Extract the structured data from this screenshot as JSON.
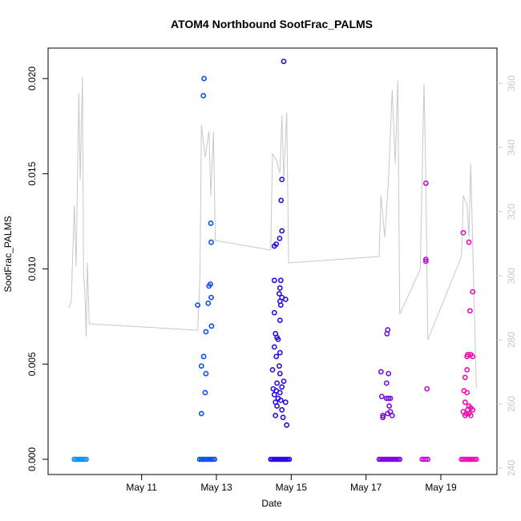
{
  "chart_data": {
    "type": "scatter",
    "title": "ATOM4 Northbound SootFrac_PALMS",
    "xlabel": "Date",
    "ylabel": "SootFrac_PALMS",
    "x_ticks": [
      {
        "day": 11,
        "label": "May 11"
      },
      {
        "day": 13,
        "label": "May 13"
      },
      {
        "day": 15,
        "label": "May 15"
      },
      {
        "day": 17,
        "label": "May 17"
      },
      {
        "day": 19,
        "label": "May 19"
      }
    ],
    "xlim_day": [
      8.5,
      20.5
    ],
    "ylim": [
      -0.0008,
      0.0216
    ],
    "y_ticks": [
      "0.000",
      "0.005",
      "0.010",
      "0.015",
      "0.020"
    ],
    "y2lim": [
      238,
      371
    ],
    "y2_ticks": [
      "240",
      "260",
      "280",
      "300",
      "320",
      "340",
      "360"
    ],
    "colors": {
      "axis": "#000000",
      "altitude_line": "#c8c8c8",
      "flight1": "#0b8ff0",
      "flight2": "#0a4ff0",
      "flight3": "#2a0be8",
      "flight4": "#7a0be8",
      "flight5": "#c40bd8",
      "flight6": "#f00cb4"
    },
    "series": [
      {
        "color_key": "flight1",
        "zeros": [
          9.2,
          9.52
        ],
        "points": []
      },
      {
        "color_key": "flight2",
        "zeros": [
          12.55,
          12.95
        ],
        "points": [
          [
            12.67,
            0.02
          ],
          [
            12.65,
            0.0191
          ],
          [
            12.85,
            0.0124
          ],
          [
            12.86,
            0.0114
          ],
          [
            12.8,
            0.0091
          ],
          [
            12.84,
            0.0092
          ],
          [
            12.86,
            0.0085
          ],
          [
            12.78,
            0.0082
          ],
          [
            12.5,
            0.0081
          ],
          [
            12.87,
            0.007
          ],
          [
            12.72,
            0.0067
          ],
          [
            12.66,
            0.0054
          ],
          [
            12.6,
            0.0049
          ],
          [
            12.72,
            0.0045
          ],
          [
            12.7,
            0.0035
          ],
          [
            12.6,
            0.0024
          ]
        ]
      },
      {
        "color_key": "flight3",
        "zeros": [
          14.45,
          14.95
        ],
        "points": [
          [
            14.8,
            0.0209
          ],
          [
            14.75,
            0.0147
          ],
          [
            14.73,
            0.0136
          ],
          [
            14.75,
            0.012
          ],
          [
            14.69,
            0.0116
          ],
          [
            14.55,
            0.0112
          ],
          [
            14.6,
            0.0113
          ],
          [
            14.55,
            0.0094
          ],
          [
            14.72,
            0.0094
          ],
          [
            14.7,
            0.009
          ],
          [
            14.68,
            0.0087
          ],
          [
            14.75,
            0.0085
          ],
          [
            14.7,
            0.0083
          ],
          [
            14.85,
            0.0084
          ],
          [
            14.72,
            0.0081
          ],
          [
            14.55,
            0.0077
          ],
          [
            14.7,
            0.0073
          ],
          [
            14.62,
            0.0064
          ],
          [
            14.65,
            0.0063
          ],
          [
            14.58,
            0.0066
          ],
          [
            14.55,
            0.0059
          ],
          [
            14.7,
            0.0056
          ],
          [
            14.6,
            0.0054
          ],
          [
            14.68,
            0.0049
          ],
          [
            14.5,
            0.0047
          ],
          [
            14.7,
            0.0045
          ],
          [
            14.8,
            0.0041
          ],
          [
            14.62,
            0.004
          ],
          [
            14.75,
            0.0038
          ],
          [
            14.52,
            0.0037
          ],
          [
            14.6,
            0.0036
          ],
          [
            14.7,
            0.0035
          ],
          [
            14.55,
            0.0034
          ],
          [
            14.65,
            0.0032
          ],
          [
            14.58,
            0.003
          ],
          [
            14.72,
            0.0031
          ],
          [
            14.85,
            0.003
          ],
          [
            14.62,
            0.0028
          ],
          [
            14.75,
            0.0026
          ],
          [
            14.58,
            0.0023
          ],
          [
            14.78,
            0.0022
          ],
          [
            14.88,
            0.0018
          ]
        ]
      },
      {
        "color_key": "flight4",
        "zeros": [
          17.35,
          17.9
        ],
        "points": [
          [
            17.58,
            0.0068
          ],
          [
            17.56,
            0.0066
          ],
          [
            17.4,
            0.0046
          ],
          [
            17.6,
            0.0045
          ],
          [
            17.55,
            0.004
          ],
          [
            17.42,
            0.0033
          ],
          [
            17.55,
            0.0032
          ],
          [
            17.6,
            0.0032
          ],
          [
            17.65,
            0.0032
          ],
          [
            17.62,
            0.0028
          ],
          [
            17.65,
            0.0025
          ],
          [
            17.58,
            0.0024
          ],
          [
            17.45,
            0.0023
          ],
          [
            17.7,
            0.0023
          ],
          [
            17.45,
            0.0022
          ]
        ]
      },
      {
        "color_key": "flight5",
        "zeros": [
          18.5,
          18.65
        ],
        "points": [
          [
            18.6,
            0.0145
          ],
          [
            18.6,
            0.0105
          ],
          [
            18.6,
            0.0104
          ],
          [
            18.63,
            0.0037
          ]
        ]
      },
      {
        "color_key": "flight6",
        "zeros": [
          19.55,
          19.95
        ],
        "points": [
          [
            19.6,
            0.0119
          ],
          [
            19.75,
            0.0114
          ],
          [
            19.85,
            0.0088
          ],
          [
            19.78,
            0.0078
          ],
          [
            19.72,
            0.0055
          ],
          [
            19.8,
            0.0055
          ],
          [
            19.7,
            0.0054
          ],
          [
            19.85,
            0.0054
          ],
          [
            19.7,
            0.0047
          ],
          [
            19.65,
            0.0043
          ],
          [
            19.62,
            0.0036
          ],
          [
            19.7,
            0.0035
          ],
          [
            19.65,
            0.003
          ],
          [
            19.75,
            0.0028
          ],
          [
            19.8,
            0.0027
          ],
          [
            19.72,
            0.0026
          ],
          [
            19.85,
            0.0026
          ],
          [
            19.6,
            0.0025
          ],
          [
            19.68,
            0.0024
          ],
          [
            19.75,
            0.0024
          ],
          [
            19.8,
            0.0023
          ],
          [
            19.65,
            0.0023
          ]
        ]
      }
    ],
    "altitude_trace": [
      [
        9.05,
        290
      ],
      [
        9.12,
        292
      ],
      [
        9.2,
        322
      ],
      [
        9.25,
        303
      ],
      [
        9.32,
        357
      ],
      [
        9.36,
        330
      ],
      [
        9.42,
        362
      ],
      [
        9.45,
        300
      ],
      [
        9.48,
        296
      ],
      [
        9.52,
        281
      ],
      [
        9.55,
        304
      ],
      [
        9.6,
        285
      ],
      [
        12.5,
        283
      ],
      [
        12.56,
        300
      ],
      [
        12.6,
        347
      ],
      [
        12.7,
        337
      ],
      [
        12.8,
        345
      ],
      [
        12.85,
        325
      ],
      [
        12.92,
        345
      ],
      [
        12.97,
        311
      ],
      [
        14.45,
        308
      ],
      [
        14.5,
        338
      ],
      [
        14.6,
        336
      ],
      [
        14.7,
        332
      ],
      [
        14.75,
        350
      ],
      [
        14.8,
        330
      ],
      [
        14.88,
        351
      ],
      [
        14.93,
        304
      ],
      [
        17.35,
        306
      ],
      [
        17.4,
        325
      ],
      [
        17.5,
        312
      ],
      [
        17.6,
        330
      ],
      [
        17.7,
        358
      ],
      [
        17.78,
        335
      ],
      [
        17.85,
        361
      ],
      [
        17.9,
        288
      ],
      [
        18.45,
        302
      ],
      [
        18.55,
        360
      ],
      [
        18.6,
        330
      ],
      [
        18.65,
        280
      ],
      [
        19.55,
        306
      ],
      [
        19.6,
        325
      ],
      [
        19.7,
        322
      ],
      [
        19.75,
        312
      ],
      [
        19.8,
        335
      ],
      [
        19.85,
        310
      ],
      [
        19.95,
        265
      ]
    ]
  }
}
